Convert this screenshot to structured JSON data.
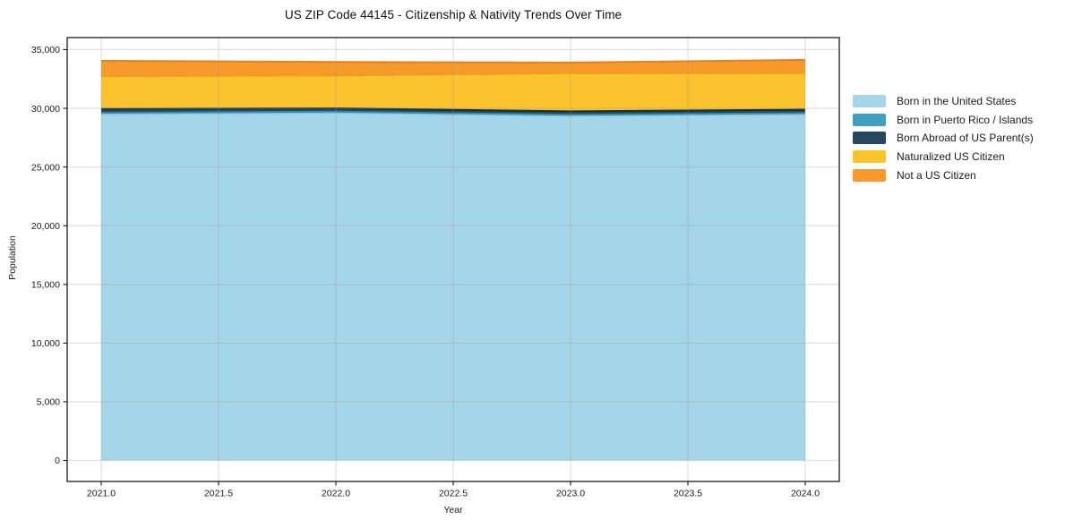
{
  "chart_data": {
    "type": "area",
    "stacked": true,
    "title": "US ZIP Code 44145 - Citizenship & Nativity Trends Over Time",
    "xlabel": "Year",
    "ylabel": "Population",
    "x": [
      2021,
      2022,
      2023,
      2024
    ],
    "series": [
      {
        "name": "Born in the United States",
        "color": "#A5D5E8",
        "edge": "#8FC7DF",
        "values": [
          29500,
          29600,
          29350,
          29480
        ]
      },
      {
        "name": "Born in Puerto Rico / Islands",
        "color": "#3E9FBE",
        "edge": "#2F8CAB",
        "values": [
          120,
          120,
          100,
          110
        ]
      },
      {
        "name": "Born Abroad of US Parent(s)",
        "color": "#24485C",
        "edge": "#16303F",
        "values": [
          330,
          280,
          300,
          300
        ]
      },
      {
        "name": "Naturalized US Citizen",
        "color": "#FBC32D",
        "edge": "#EC9E20",
        "values": [
          2800,
          2800,
          3250,
          3110
        ]
      },
      {
        "name": "Not a US Citizen",
        "color": "#F8992B",
        "edge": "#E0831C",
        "values": [
          1300,
          1150,
          900,
          1130
        ]
      }
    ],
    "xlim": [
      2020.855,
      2024.145
    ],
    "ylim": [
      -1790,
      36030
    ],
    "xticks": {
      "values": [
        2021.0,
        2021.5,
        2022.0,
        2022.5,
        2023.0,
        2023.5,
        2024.0
      ],
      "labels": [
        "2021.0",
        "2021.5",
        "2022.0",
        "2022.5",
        "2023.0",
        "2023.5",
        "2024.0"
      ]
    },
    "yticks": {
      "values": [
        0,
        5000,
        10000,
        15000,
        20000,
        25000,
        30000,
        35000
      ],
      "labels": [
        "0",
        "5,000",
        "10,000",
        "15,000",
        "20,000",
        "25,000",
        "30,000",
        "35,000"
      ]
    },
    "grid": true,
    "legend_position": "right",
    "axis_color": "#1a1a1a",
    "grid_color": "rgba(150,150,150,0.28)",
    "tick_label_color": "#1a1a1a"
  }
}
